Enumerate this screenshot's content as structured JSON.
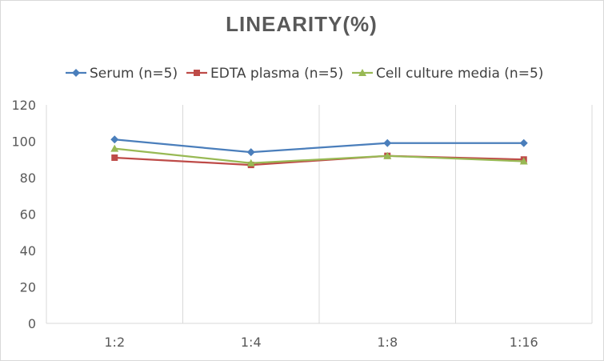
{
  "chart_data": {
    "type": "line",
    "title": "LINEARITY(%)",
    "xlabel": "",
    "ylabel": "",
    "categories": [
      "1:2",
      "1:4",
      "1:8",
      "1:16"
    ],
    "ylim": [
      0,
      120
    ],
    "yticks": [
      0,
      20,
      40,
      60,
      80,
      100,
      120
    ],
    "grid": {
      "horizontal": false,
      "vertical": true
    },
    "legend": "top",
    "series": [
      {
        "name": "Serum (n=5)",
        "values": [
          101,
          94,
          99,
          99
        ],
        "color": "#4a7ebb",
        "marker": "diamond"
      },
      {
        "name": "EDTA plasma (n=5)",
        "values": [
          91,
          87,
          92,
          90
        ],
        "color": "#be4b48",
        "marker": "square"
      },
      {
        "name": "Cell culture media (n=5)",
        "values": [
          96,
          88,
          92,
          89
        ],
        "color": "#98b954",
        "marker": "triangle"
      }
    ]
  }
}
